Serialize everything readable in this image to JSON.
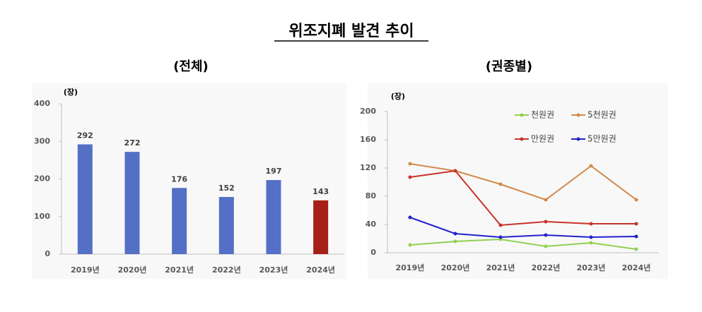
{
  "title": "위조지폐 발견 추이",
  "chart_data": [
    {
      "type": "bar",
      "title": "(전체)",
      "y_label": "(장)",
      "categories": [
        "2019년",
        "2020년",
        "2021년",
        "2022년",
        "2023년",
        "2024년"
      ],
      "values": [
        292,
        272,
        176,
        152,
        197,
        143
      ],
      "colors": [
        "#5470c6",
        "#5470c6",
        "#5470c6",
        "#5470c6",
        "#5470c6",
        "#a52016"
      ],
      "ylim": [
        0,
        400
      ],
      "yticks": [
        0,
        100,
        200,
        300,
        400
      ]
    },
    {
      "type": "line",
      "title": "(권종별)",
      "y_label": "(장)",
      "categories": [
        "2019년",
        "2020년",
        "2021년",
        "2022년",
        "2023년",
        "2024년"
      ],
      "series": [
        {
          "name": "천원권",
          "color": "#92d050",
          "values": [
            11,
            16,
            19,
            9,
            14,
            5
          ]
        },
        {
          "name": "5천원권",
          "color": "#d08a4a",
          "values": [
            126,
            116,
            97,
            75,
            123,
            75
          ]
        },
        {
          "name": "만원권",
          "color": "#c8322a",
          "values": [
            107,
            116,
            39,
            44,
            41,
            41
          ]
        },
        {
          "name": "5만원권",
          "color": "#2222cc",
          "values": [
            50,
            27,
            22,
            25,
            22,
            23
          ]
        }
      ],
      "ylim": [
        0,
        200
      ],
      "yticks": [
        0,
        40,
        80,
        120,
        160,
        200
      ]
    }
  ]
}
